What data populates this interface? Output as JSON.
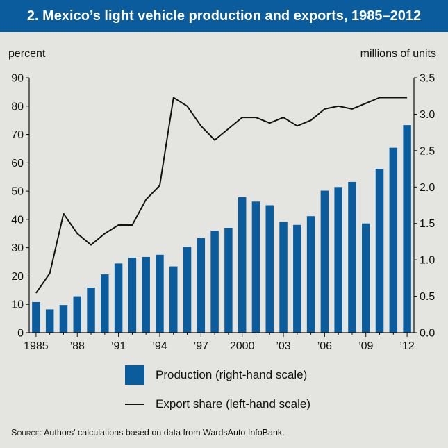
{
  "title": "2. Mexico’s light vehicle production and exports, 1985–2012",
  "source_label": "Source",
  "source_text": ": Authors' calculations based on data from WardsAuto InfoBank.",
  "colors": {
    "bar": "#0a5c9c",
    "line": "#111111",
    "background": "#e4e4e1"
  },
  "chart_data": {
    "type": "bar",
    "left_axis_label": "percent",
    "right_axis_label": "millions of units",
    "left_ylim": [
      0,
      90
    ],
    "left_ticks": [
      "0",
      "10",
      "20",
      "30",
      "40",
      "50",
      "60",
      "70",
      "80",
      "90"
    ],
    "right_ylim": [
      0,
      3.5
    ],
    "right_ticks": [
      "0.0",
      "0.5",
      "1.0",
      "1.5",
      "2.0",
      "2.5",
      "3.0",
      "3.5"
    ],
    "x_tick_labels": [
      {
        "year": 1985,
        "label": "1985"
      },
      {
        "year": 1988,
        "label": "’88"
      },
      {
        "year": 1991,
        "label": "’91"
      },
      {
        "year": 1994,
        "label": "’94"
      },
      {
        "year": 1997,
        "label": "’97"
      },
      {
        "year": 2000,
        "label": "2000"
      },
      {
        "year": 2003,
        "label": "’03"
      },
      {
        "year": 2006,
        "label": "’06"
      },
      {
        "year": 2009,
        "label": "’09"
      },
      {
        "year": 2012,
        "label": "’12"
      }
    ],
    "years": [
      1985,
      1986,
      1987,
      1988,
      1989,
      1990,
      1991,
      1992,
      1993,
      1994,
      1995,
      1996,
      1997,
      1998,
      1999,
      2000,
      2001,
      2002,
      2003,
      2004,
      2005,
      2006,
      2007,
      2008,
      2009,
      2010,
      2011,
      2012
    ],
    "series": [
      {
        "name": "Production (right-hand scale)",
        "kind": "bar",
        "axis": "right",
        "values": [
          0.42,
          0.32,
          0.38,
          0.5,
          0.62,
          0.8,
          0.95,
          1.03,
          1.04,
          1.07,
          0.91,
          1.18,
          1.3,
          1.4,
          1.44,
          1.86,
          1.8,
          1.75,
          1.52,
          1.48,
          1.6,
          1.95,
          2.0,
          2.07,
          1.5,
          2.25,
          2.54,
          2.85
        ]
      },
      {
        "name": "Export share (left-hand scale)",
        "kind": "line",
        "axis": "left",
        "values": [
          14,
          21,
          42,
          35,
          31,
          35,
          38,
          38,
          47,
          52,
          83,
          80,
          73,
          68,
          72,
          76,
          76,
          74,
          76,
          73,
          75,
          79,
          80,
          79,
          81,
          83,
          83,
          83
        ]
      }
    ],
    "grid": false,
    "legend_position": "bottom"
  }
}
